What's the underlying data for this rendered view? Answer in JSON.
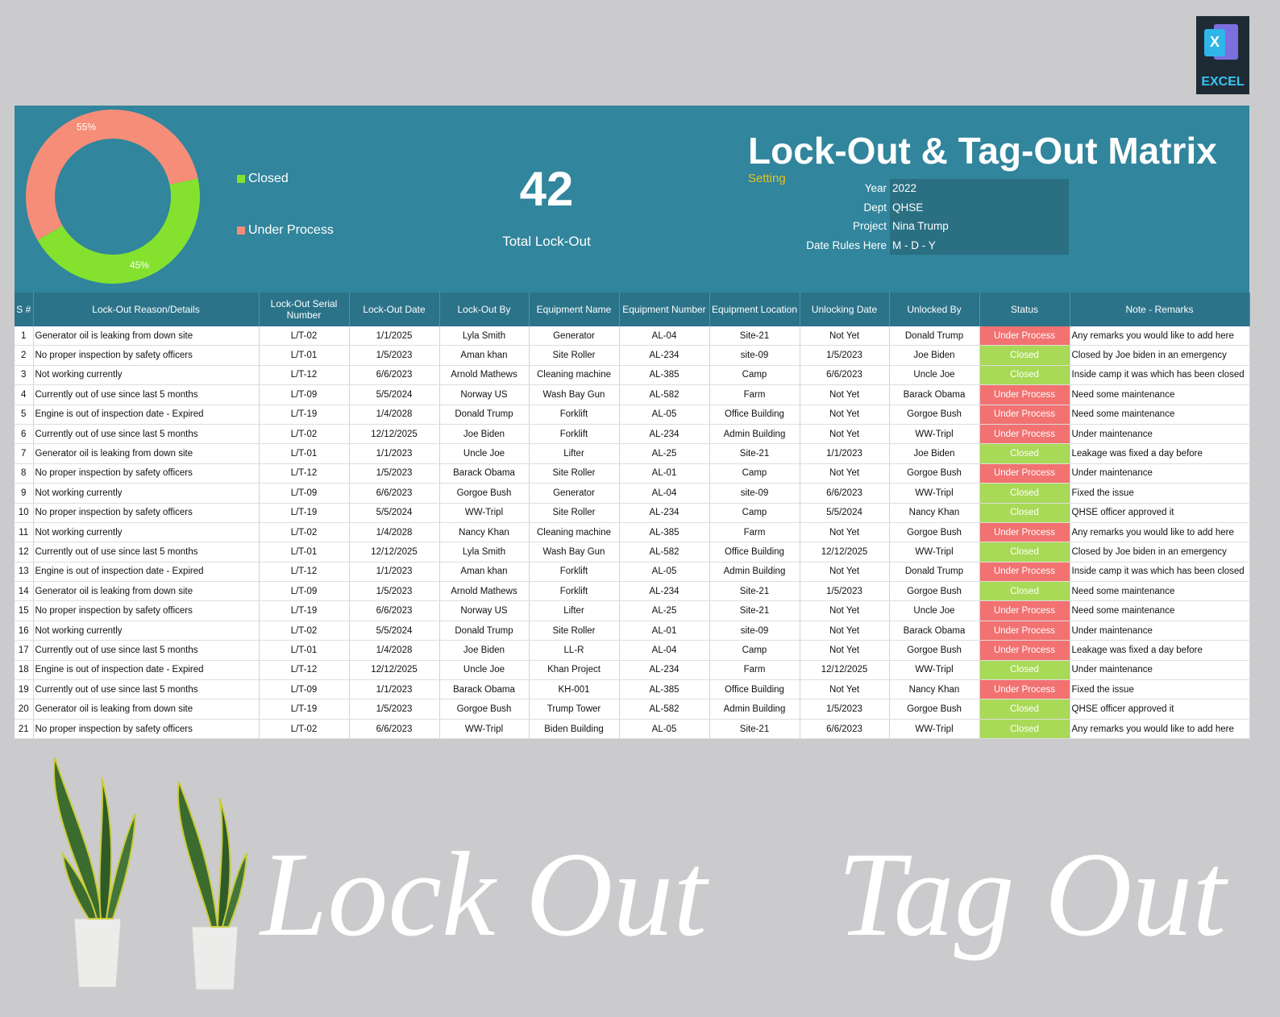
{
  "badge": {
    "label": "EXCEL"
  },
  "chart_data": {
    "type": "pie",
    "categories": [
      "Closed",
      "Under Process"
    ],
    "values": [
      45,
      55
    ],
    "value_labels": [
      "45%",
      "55%"
    ],
    "colors": [
      "#84e22f",
      "#f68d78"
    ]
  },
  "summary": {
    "total": 42,
    "label": "Total Lock-Out"
  },
  "header": {
    "title": "Lock-Out & Tag-Out Matrix",
    "setting_label": "Setting",
    "settings": [
      {
        "label": "Year",
        "value": 2022
      },
      {
        "label": "Dept",
        "value": "QHSE"
      },
      {
        "label": "Project",
        "value": "Nina Trump"
      },
      {
        "label": "Date Rules Here",
        "value": "M - D - Y"
      }
    ]
  },
  "table": {
    "headers": [
      "S #",
      "Lock-Out Reason/Details",
      "Lock-Out Serial Number",
      "Lock-Out Date",
      "Lock-Out By",
      "Equipment Name",
      "Equipment Number",
      "Equipment Location",
      "Unlocking Date",
      "Unlocked By",
      "Status",
      "Note - Remarks"
    ],
    "status_colors": {
      "Closed": "#a8d957",
      "Under Process": "#f27171"
    },
    "rows": [
      [
        1,
        "Generator oil is leaking from down site",
        "L/T-02",
        "1/1/2025",
        "Lyla Smith",
        "Generator",
        "AL-04",
        "Site-21",
        "Not Yet",
        "Donald Trump",
        "Under Process",
        "Any remarks you would like to add here"
      ],
      [
        2,
        "No proper inspection by safety officers",
        "L/T-01",
        "1/5/2023",
        "Aman khan",
        "Site Roller",
        "AL-234",
        "site-09",
        "1/5/2023",
        "Joe Biden",
        "Closed",
        "Closed by Joe biden in an emergency"
      ],
      [
        3,
        "Not working currently",
        "L/T-12",
        "6/6/2023",
        "Arnold Mathews",
        "Cleaning machine",
        "AL-385",
        "Camp",
        "6/6/2023",
        "Uncle Joe",
        "Closed",
        "Inside camp it was which has been closed"
      ],
      [
        4,
        "Currently out of use since last 5 months",
        "L/T-09",
        "5/5/2024",
        "Norway US",
        "Wash Bay Gun",
        "AL-582",
        "Farm",
        "Not Yet",
        "Barack Obama",
        "Under Process",
        "Need some maintenance"
      ],
      [
        5,
        "Engine is out of inspection date - Expired",
        "L/T-19",
        "1/4/2028",
        "Donald Trump",
        "Forklift",
        "AL-05",
        "Office Building",
        "Not Yet",
        "Gorgoe Bush",
        "Under Process",
        "Need some maintenance"
      ],
      [
        6,
        "Currently out of use since last 5 months",
        "L/T-02",
        "12/12/2025",
        "Joe Biden",
        "Forklift",
        "AL-234",
        "Admin Building",
        "Not Yet",
        "WW-Tripl",
        "Under Process",
        "Under maintenance"
      ],
      [
        7,
        "Generator oil is leaking from down site",
        "L/T-01",
        "1/1/2023",
        "Uncle Joe",
        "Lifter",
        "AL-25",
        "Site-21",
        "1/1/2023",
        "Joe Biden",
        "Closed",
        "Leakage was fixed a day before"
      ],
      [
        8,
        "No proper inspection by safety officers",
        "L/T-12",
        "1/5/2023",
        "Barack Obama",
        "Site Roller",
        "AL-01",
        "Camp",
        "Not Yet",
        "Gorgoe Bush",
        "Under Process",
        "Under maintenance"
      ],
      [
        9,
        "Not working currently",
        "L/T-09",
        "6/6/2023",
        "Gorgoe Bush",
        "Generator",
        "AL-04",
        "site-09",
        "6/6/2023",
        "WW-Tripl",
        "Closed",
        "Fixed the issue"
      ],
      [
        10,
        "No proper inspection by safety officers",
        "L/T-19",
        "5/5/2024",
        "WW-Tripl",
        "Site Roller",
        "AL-234",
        "Camp",
        "5/5/2024",
        "Nancy Khan",
        "Closed",
        "QHSE officer approved it"
      ],
      [
        11,
        "Not working currently",
        "L/T-02",
        "1/4/2028",
        "Nancy Khan",
        "Cleaning machine",
        "AL-385",
        "Farm",
        "Not Yet",
        "Gorgoe Bush",
        "Under Process",
        "Any remarks you would like to add here"
      ],
      [
        12,
        "Currently out of use since last 5 months",
        "L/T-01",
        "12/12/2025",
        "Lyla Smith",
        "Wash Bay Gun",
        "AL-582",
        "Office Building",
        "12/12/2025",
        "WW-Tripl",
        "Closed",
        "Closed by Joe biden in an emergency"
      ],
      [
        13,
        "Engine is out of inspection date - Expired",
        "L/T-12",
        "1/1/2023",
        "Aman khan",
        "Forklift",
        "AL-05",
        "Admin Building",
        "Not Yet",
        "Donald Trump",
        "Under Process",
        "Inside camp it was which has been closed"
      ],
      [
        14,
        "Generator oil is leaking from down site",
        "L/T-09",
        "1/5/2023",
        "Arnold Mathews",
        "Forklift",
        "AL-234",
        "Site-21",
        "1/5/2023",
        "Gorgoe Bush",
        "Closed",
        "Need some maintenance"
      ],
      [
        15,
        "No proper inspection by safety officers",
        "L/T-19",
        "6/6/2023",
        "Norway US",
        "Lifter",
        "AL-25",
        "Site-21",
        "Not Yet",
        "Uncle Joe",
        "Under Process",
        "Need some maintenance"
      ],
      [
        16,
        "Not working currently",
        "L/T-02",
        "5/5/2024",
        "Donald Trump",
        "Site Roller",
        "AL-01",
        "site-09",
        "Not Yet",
        "Barack Obama",
        "Under Process",
        "Under maintenance"
      ],
      [
        17,
        "Currently out of use since last 5 months",
        "L/T-01",
        "1/4/2028",
        "Joe Biden",
        "LL-R",
        "AL-04",
        "Camp",
        "Not Yet",
        "Gorgoe Bush",
        "Under Process",
        "Leakage was fixed a day before"
      ],
      [
        18,
        "Engine is out of inspection date - Expired",
        "L/T-12",
        "12/12/2025",
        "Uncle Joe",
        "Khan Project",
        "AL-234",
        "Farm",
        "12/12/2025",
        "WW-Tripl",
        "Closed",
        "Under maintenance"
      ],
      [
        19,
        "Currently out of use since last 5 months",
        "L/T-09",
        "1/1/2023",
        "Barack Obama",
        "KH-001",
        "AL-385",
        "Office Building",
        "Not Yet",
        "Nancy Khan",
        "Under Process",
        "Fixed the issue"
      ],
      [
        20,
        "Generator oil is leaking from down site",
        "L/T-19",
        "1/5/2023",
        "Gorgoe Bush",
        "Trump Tower",
        "AL-582",
        "Admin Building",
        "1/5/2023",
        "Gorgoe Bush",
        "Closed",
        "QHSE officer approved it"
      ],
      [
        21,
        "No proper inspection by safety officers",
        "L/T-02",
        "6/6/2023",
        "WW-Tripl",
        "Biden Building",
        "AL-05",
        "Site-21",
        "6/6/2023",
        "WW-Tripl",
        "Closed",
        "Any remarks you would like to add here"
      ]
    ]
  },
  "footer": {
    "script_left": "Lock Out",
    "script_right": "Tag Out"
  }
}
